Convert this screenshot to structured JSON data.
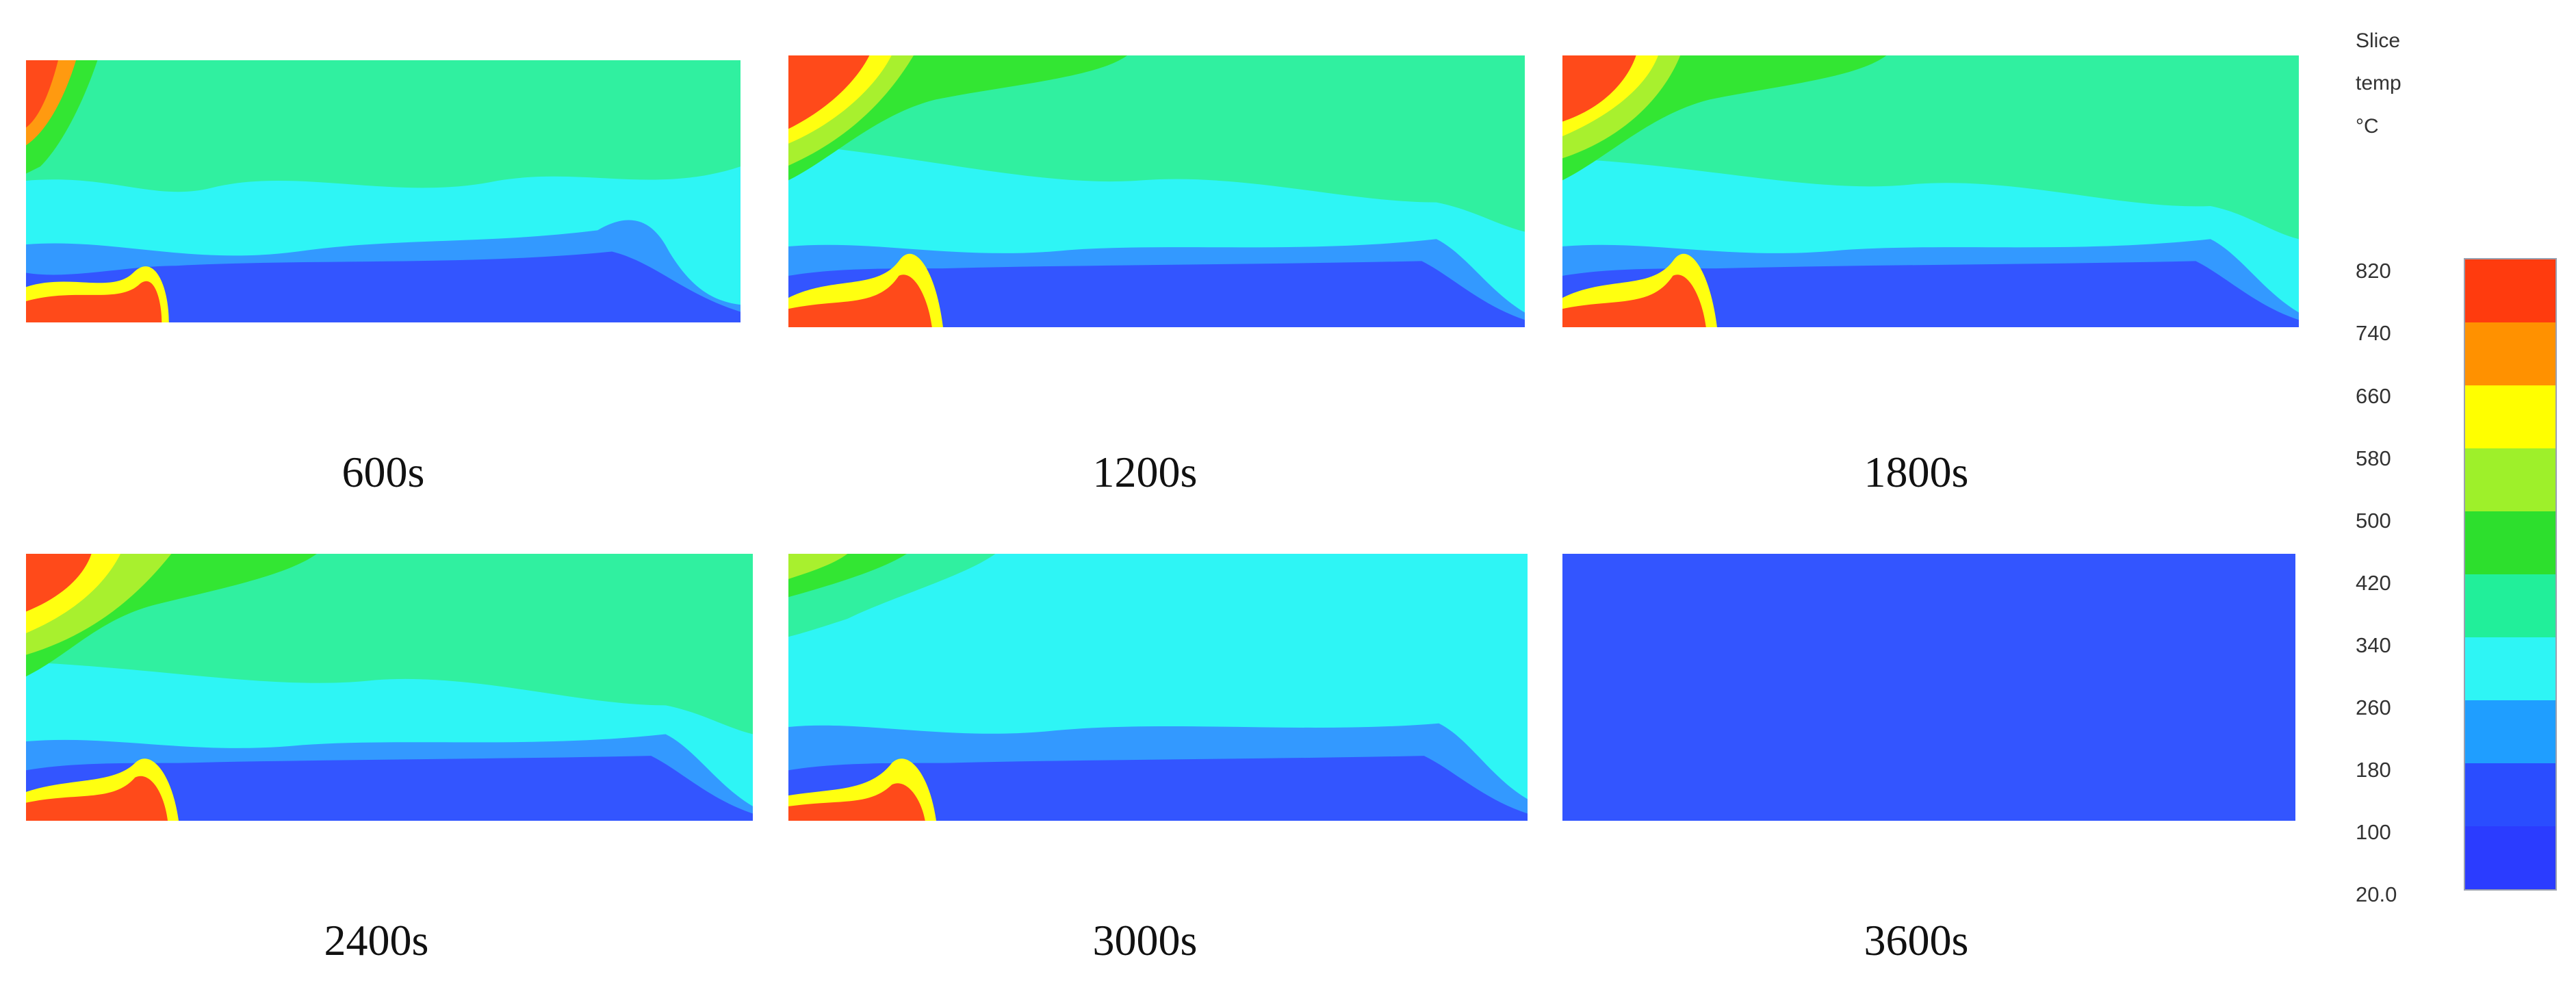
{
  "panels": [
    {
      "label": "600s"
    },
    {
      "label": "1200s"
    },
    {
      "label": "1800s"
    },
    {
      "label": "2400s"
    },
    {
      "label": "3000s"
    },
    {
      "label": "3600s"
    }
  ],
  "legend": {
    "lines": [
      "Slice",
      "temp",
      "°C"
    ],
    "ticks": [
      "820",
      "740",
      "660",
      "580",
      "500",
      "420",
      "340",
      "260",
      "180",
      "100",
      "20.0"
    ],
    "colors_top_to_bottom": [
      "#ff3b0e",
      "#ff9100",
      "#ffff00",
      "#9ef02a",
      "#2ddf2d",
      "#21ef9a",
      "#2ef5f5",
      "#1f9eff",
      "#2a4dff",
      "#2b3cff"
    ]
  },
  "colors": {
    "cold": "#3355ff",
    "cool": "#3399ff",
    "mild": "#2ef5f5",
    "warm": "#30f0a0",
    "hot_green": "#33e633",
    "yellow_green": "#a8f02e",
    "yellow": "#ffff10",
    "orange": "#ff9a10",
    "red": "#ff4a1a"
  }
}
